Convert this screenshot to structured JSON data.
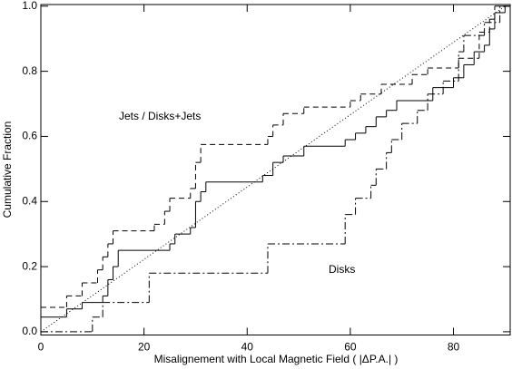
{
  "chart_data": {
    "type": "step",
    "x_label": "Misalignement with Local Magnetic Field ( |ΔP.A.| )",
    "y_label": "Cumulative Fraction",
    "annotations": [
      {
        "text": "Jets / Disks+Jets"
      },
      {
        "text": "Disks"
      }
    ],
    "xlim": [
      0,
      91
    ],
    "ylim": [
      -0.01,
      1.005
    ],
    "xticks": [
      0,
      20,
      40,
      60,
      80
    ],
    "yticks": [
      {
        "value": 0,
        "label": "0.0"
      },
      {
        "value": 0.2,
        "label": "0.2"
      },
      {
        "value": 0.4,
        "label": "0.4"
      },
      {
        "value": 0.6,
        "label": "0.6"
      },
      {
        "value": 0.8,
        "label": "0.8"
      },
      {
        "value": 1,
        "label": "1.0"
      }
    ],
    "series": [
      {
        "style": "solid",
        "color": "#000000",
        "x": [
          0,
          5,
          8,
          12,
          13,
          14,
          15,
          25,
          26,
          29,
          30,
          31,
          32,
          43,
          45,
          47,
          51,
          59,
          61,
          63,
          65,
          67,
          69,
          76,
          80,
          82,
          84,
          86,
          87,
          88,
          90
        ],
        "values": [
          0.045,
          0.07,
          0.09,
          0.11,
          0.16,
          0.2,
          0.25,
          0.27,
          0.3,
          0.32,
          0.4,
          0.43,
          0.46,
          0.48,
          0.52,
          0.54,
          0.57,
          0.59,
          0.61,
          0.63,
          0.66,
          0.68,
          0.71,
          0.75,
          0.78,
          0.82,
          0.86,
          0.88,
          0.93,
          0.98,
          1.0
        ]
      },
      {
        "style": "dashed",
        "color": "#000000",
        "x": [
          0,
          5,
          8,
          11,
          12,
          13,
          14,
          22,
          24,
          25,
          29,
          30,
          31,
          44,
          45,
          47,
          51,
          60,
          62,
          66,
          72,
          75,
          81,
          85,
          87,
          88
        ],
        "values": [
          0.075,
          0.11,
          0.15,
          0.19,
          0.23,
          0.27,
          0.31,
          0.33,
          0.37,
          0.41,
          0.44,
          0.52,
          0.575,
          0.6,
          0.635,
          0.67,
          0.69,
          0.71,
          0.73,
          0.76,
          0.79,
          0.81,
          0.84,
          0.92,
          0.96,
          1.0
        ]
      },
      {
        "style": "dashdot",
        "color": "#000000",
        "x": [
          0,
          10,
          12,
          21,
          44,
          59,
          61,
          64,
          65,
          67,
          68,
          70,
          73,
          75,
          78,
          81,
          82,
          86,
          89
        ],
        "values": [
          0,
          0.045,
          0.09,
          0.18,
          0.27,
          0.36,
          0.41,
          0.45,
          0.5,
          0.55,
          0.59,
          0.64,
          0.68,
          0.73,
          0.77,
          0.86,
          0.91,
          0.95,
          1.0
        ]
      },
      {
        "style": "dotted",
        "color": "#000000",
        "line": true,
        "x": [
          0,
          90
        ],
        "values": [
          0,
          1
        ]
      }
    ]
  }
}
